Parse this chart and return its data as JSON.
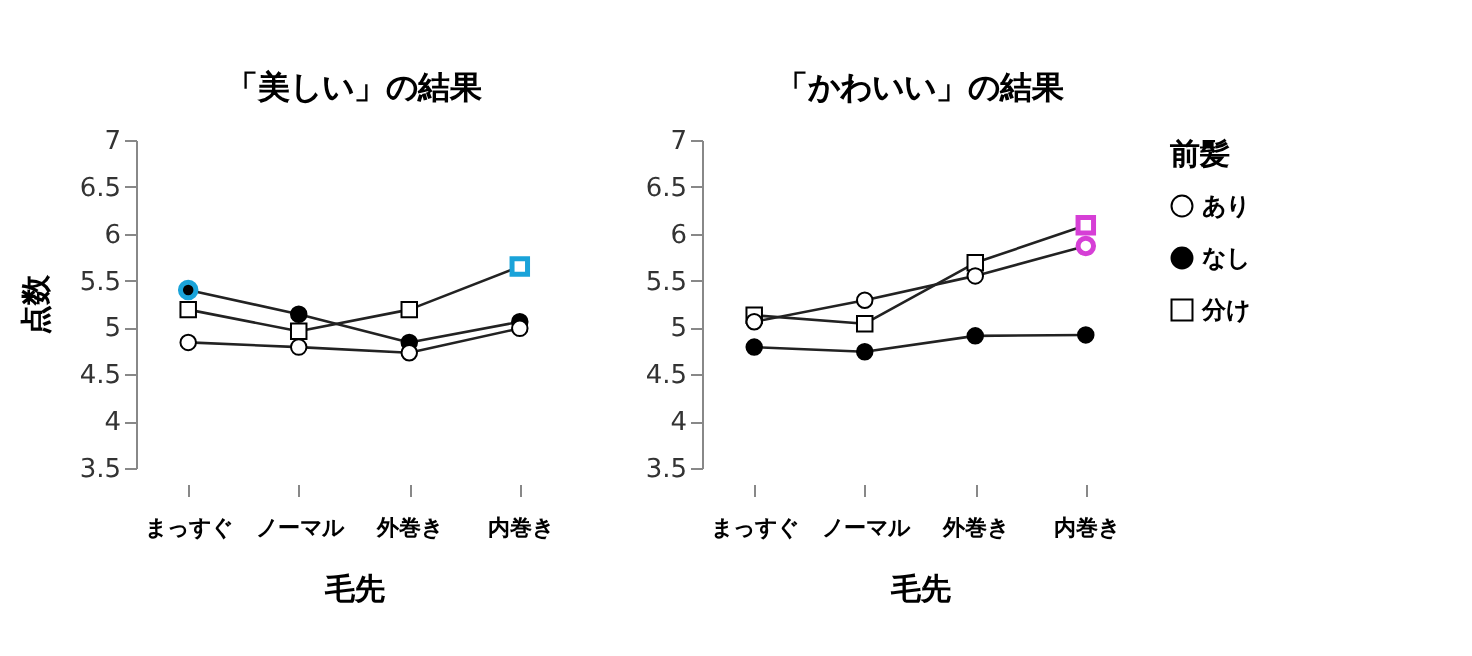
{
  "chart_data": [
    {
      "type": "line",
      "title": "「美しい」の結果",
      "xlabel": "毛先",
      "ylabel": "点数",
      "categories": [
        "まっすぐ",
        "ノーマル",
        "外巻き",
        "内巻き"
      ],
      "ylim": [
        3.5,
        7
      ],
      "yticks": [
        3.5,
        4,
        4.5,
        5,
        5.5,
        6,
        6.5,
        7
      ],
      "grid": false,
      "series": [
        {
          "marker": "circle",
          "color": "#ffffff",
          "values": [
            4.84,
            4.79,
            4.73,
            4.99
          ]
        },
        {
          "marker": "circle",
          "color": "#000000",
          "colors": [
            "#1aa3d9",
            null,
            null,
            null
          ],
          "values": [
            5.4,
            5.14,
            4.84,
            5.06
          ]
        },
        {
          "marker": "square",
          "color": "#ffffff",
          "colors": [
            null,
            null,
            null,
            "#1aa3d9"
          ],
          "values": [
            5.19,
            4.96,
            5.19,
            5.65
          ]
        }
      ]
    },
    {
      "type": "line",
      "title": "「かわいい」の結果",
      "xlabel": "毛先",
      "legend_title": "前髪",
      "categories": [
        "まっすぐ",
        "ノーマル",
        "外巻き",
        "内巻き"
      ],
      "ylim": [
        3.5,
        7
      ],
      "yticks": [
        3.5,
        4,
        4.5,
        5,
        5.5,
        6,
        6.5,
        7
      ],
      "grid": false,
      "legend": "right",
      "series": [
        {
          "name": "あり",
          "marker": "circle",
          "color": "#ffffff",
          "colors": [
            null,
            null,
            null,
            "#d63fd6"
          ],
          "values": [
            5.06,
            5.29,
            5.55,
            5.87
          ]
        },
        {
          "name": "なし",
          "marker": "circle",
          "color": "#000000",
          "values": [
            4.79,
            4.74,
            4.91,
            4.92
          ]
        },
        {
          "name": "分け",
          "marker": "square",
          "color": "#ffffff",
          "colors": [
            null,
            null,
            null,
            "#d63fd6"
          ],
          "values": [
            5.13,
            5.04,
            5.69,
            6.09
          ]
        }
      ]
    }
  ]
}
